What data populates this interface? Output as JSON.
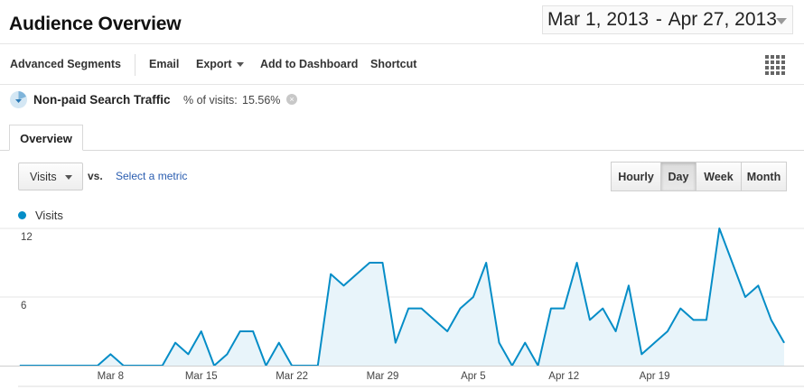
{
  "header": {
    "title": "Audience Overview",
    "date_start": "Mar 1, 2013",
    "date_separator": "-",
    "date_end": "Apr 27, 2013"
  },
  "toolbar": {
    "advanced_segments": "Advanced Segments",
    "email": "Email",
    "export": "Export",
    "add_to_dashboard": "Add to Dashboard",
    "shortcut": "Shortcut"
  },
  "segment": {
    "name": "Non-paid Search Traffic",
    "stat_label": "% of visits:",
    "stat_value": "15.56%",
    "color": "#058dc7"
  },
  "tabs": [
    {
      "label": "Overview",
      "active": true
    }
  ],
  "controls": {
    "metric": "Visits",
    "vs": "vs.",
    "select_metric": "Select a metric",
    "granularity": [
      {
        "label": "Hourly",
        "active": false
      },
      {
        "label": "Day",
        "active": true
      },
      {
        "label": "Week",
        "active": false
      },
      {
        "label": "Month",
        "active": false
      }
    ]
  },
  "chart_data": {
    "type": "area",
    "legend_position": "top-left",
    "series": [
      {
        "name": "Visits",
        "color": "#058dc7",
        "values": [
          0,
          0,
          0,
          0,
          0,
          0,
          0,
          1,
          0,
          0,
          0,
          0,
          2,
          1,
          3,
          0,
          1,
          3,
          3,
          0,
          2,
          0,
          0,
          0,
          8,
          7,
          8,
          9,
          9,
          2,
          5,
          5,
          4,
          3,
          5,
          6,
          9,
          2,
          0,
          2,
          0,
          5,
          5,
          9,
          4,
          5,
          3,
          7,
          1,
          2,
          3,
          5,
          4,
          4,
          12,
          9,
          6,
          7,
          4,
          2
        ]
      }
    ],
    "x_tick_labels": [
      "Mar 8",
      "Mar 15",
      "Mar 22",
      "Mar 29",
      "Apr 5",
      "Apr 12",
      "Apr 19"
    ],
    "x_tick_indices": [
      7,
      14,
      21,
      28,
      35,
      42,
      49
    ],
    "y_ticks": [
      "12",
      "6"
    ],
    "ylim": [
      0,
      12
    ],
    "grid": "horizontal"
  }
}
